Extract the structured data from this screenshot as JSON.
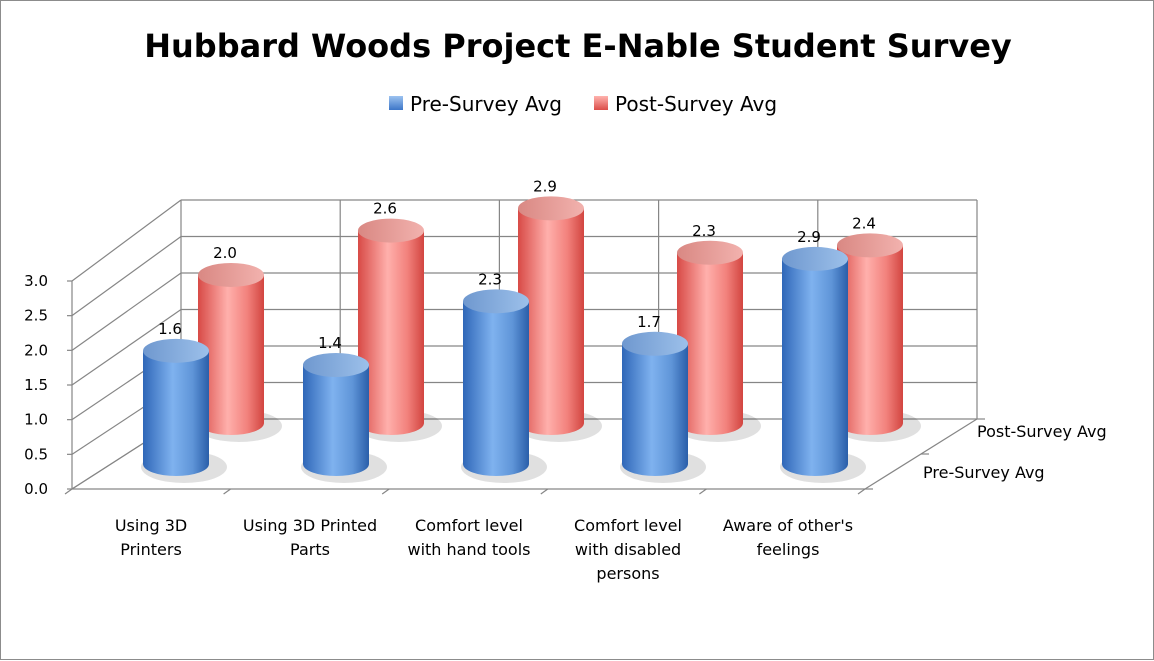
{
  "chart_data": {
    "type": "bar",
    "subtype": "3d-cylinder",
    "title": "Hubbard Woods Project E-Nable Student Survey",
    "categories": [
      [
        "Using 3D",
        "Printers"
      ],
      [
        "Using 3D Printed",
        "Parts"
      ],
      [
        "Comfort level",
        "with hand tools"
      ],
      [
        "Comfort level",
        "with disabled",
        "persons"
      ],
      [
        "Aware of other's",
        "feelings"
      ]
    ],
    "series": [
      {
        "name": "Pre-Survey Avg",
        "values": [
          1.6,
          1.4,
          2.3,
          1.7,
          2.9
        ],
        "data_labels": [
          "1.6",
          "1.4",
          "2.3",
          "1.7",
          "2.9"
        ],
        "color": "#4f81bd"
      },
      {
        "name": "Post-Survey Avg",
        "values": [
          2.0,
          2.6,
          2.9,
          2.3,
          2.4
        ],
        "data_labels": [
          "2.0",
          "2.6",
          "2.9",
          "2.3",
          "2.4"
        ],
        "color": "#e0605a"
      }
    ],
    "y_ticks": [
      "0.0",
      "0.5",
      "1.0",
      "1.5",
      "2.0",
      "2.5",
      "3.0"
    ],
    "ylim": [
      0,
      3
    ],
    "legend_position": "top",
    "grid": true
  }
}
